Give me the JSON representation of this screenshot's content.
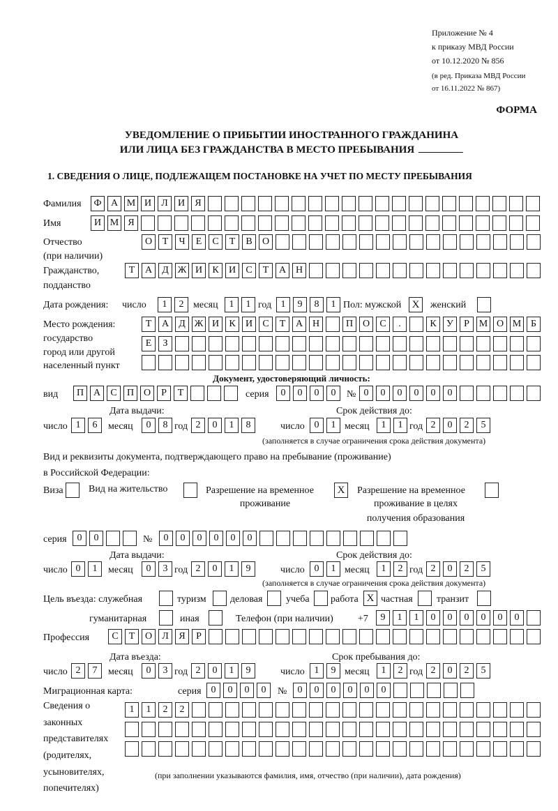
{
  "header": {
    "appendix": "Приложение № 4",
    "order": "к приказу МВД России",
    "order_date": "от 10.12.2020 № 856",
    "revision": "(в ред. Приказа МВД России",
    "revision_date": "от 16.11.2022 № 867)",
    "form_label": "ФОРМА",
    "title_line1": "УВЕДОМЛЕНИЕ О ПРИБЫТИИ ИНОСТРАННОГО ГРАЖДАНИНА",
    "title_line2": "ИЛИ ЛИЦА БЕЗ ГРАЖДАНСТВА В МЕСТО ПРЕБЫВАНИЯ",
    "section1": "1. СВЕДЕНИЯ О ЛИЦЕ, ПОДЛЕЖАЩЕМ ПОСТАНОВКЕ НА УЧЕТ ПО МЕСТУ ПРЕБЫВАНИЯ"
  },
  "person": {
    "surname_label": "Фамилия",
    "surname": "ФАМИЛИЯ",
    "name_label": "Имя",
    "name": "ИМЯ",
    "patronymic_label": "Отчество",
    "patronymic_note": "(при наличии)",
    "patronymic": "ОТЧЕСТВО",
    "citizenship_label": "Гражданство,",
    "citizenship_label2": "подданство",
    "citizenship": "ТАДЖИКИСТАН",
    "birth_label": "Дата рождения:",
    "day_label": "число",
    "month_label": "месяц",
    "year_label": "год",
    "birth_day": "12",
    "birth_month": "11",
    "birth_year": "1981",
    "sex_label": "Пол: мужской",
    "female_label": "женский",
    "male": "X",
    "female": "",
    "birthplace_label1": "Место рождения:",
    "birthplace_label2": "государство",
    "birthplace_label3": "город или другой",
    "birthplace_label4": "населенный пункт",
    "birthplace_row1": "ТАДЖИКИСТАН ПОС. КУРМОМБ",
    "birthplace_row2": "ЕЗ",
    "birthplace_row3": ""
  },
  "id_doc": {
    "heading": "Документ, удостоверяющий личность:",
    "type_label": "вид",
    "type": "ПАСПОРТ",
    "series_label": "серия",
    "series": "0000",
    "number_label": "№",
    "number": "000000",
    "issue_label": "Дата выдачи:",
    "valid_label": "Срок действия до:",
    "day_label": "число",
    "month_label": "месяц",
    "year_label": "год",
    "issue_day": "16",
    "issue_month": "08",
    "issue_year": "2018",
    "valid_day": "01",
    "valid_month": "11",
    "valid_year": "2025",
    "note": "(заполняется в случае ограничения срока действия документа)"
  },
  "permit": {
    "heading1": "Вид и реквизиты документа, подтверждающего право на пребывание (проживание)",
    "heading2": "в Российской Федерации:",
    "visa_label": "Виза",
    "visa": "",
    "residence_label": "Вид на жительство",
    "residence": "",
    "temp_label1": "Разрешение на временное",
    "temp_label2": "проживание",
    "temp": "X",
    "edu_label1": "Разрешение на временное",
    "edu_label2": "проживание в целях",
    "edu_label3": "получения образования",
    "edu": "",
    "series_label": "серия",
    "series": "00",
    "number_label": "№",
    "number": "000000",
    "issue_label": "Дата выдачи:",
    "valid_label": "Срок действия до:",
    "day_label": "число",
    "month_label": "месяц",
    "year_label": "год",
    "issue_day": "01",
    "issue_month": "03",
    "issue_year": "2019",
    "valid_day": "01",
    "valid_month": "12",
    "valid_year": "2025",
    "note": "(заполняется в случае ограничения срока действия документа)"
  },
  "purpose": {
    "label": "Цель въезда: служебная",
    "service": "",
    "tourism_label": "туризм",
    "tourism": "",
    "business_label": "деловая",
    "business": "",
    "study_label": "учеба",
    "study": "",
    "work_label": "работа",
    "work": "X",
    "private_label": "частная",
    "private": "",
    "transit_label": "транзит",
    "transit": "",
    "humanitarian_label": "гуманитарная",
    "humanitarian": "",
    "other_label": "иная",
    "other": "",
    "phone_label": "Телефон (при наличии)",
    "phone_prefix": "+7",
    "phone": "911000000"
  },
  "profession": {
    "label": "Профессия",
    "value": "СТОЛЯР"
  },
  "stay": {
    "entry_label": "Дата въезда:",
    "until_label": "Срок пребывания до:",
    "day_label": "число",
    "month_label": "месяц",
    "year_label": "год",
    "entry_day": "27",
    "entry_month": "03",
    "entry_year": "2019",
    "until_day": "19",
    "until_month": "12",
    "until_year": "2025"
  },
  "migration_card": {
    "label": "Миграционная карта:",
    "series_label": "серия",
    "series": "0000",
    "number_label": "№",
    "number": "000000"
  },
  "representatives": {
    "label1": "Сведения о",
    "label2": "законных",
    "label3": "представителях",
    "label4": "(родителях,",
    "label5": "усыновителях,",
    "label6": "попечителях)",
    "row1": "1122",
    "row2": "",
    "row3": "",
    "note": "(при заполнении указываются фамилия, имя, отчество (при наличии), дата рождения)"
  }
}
